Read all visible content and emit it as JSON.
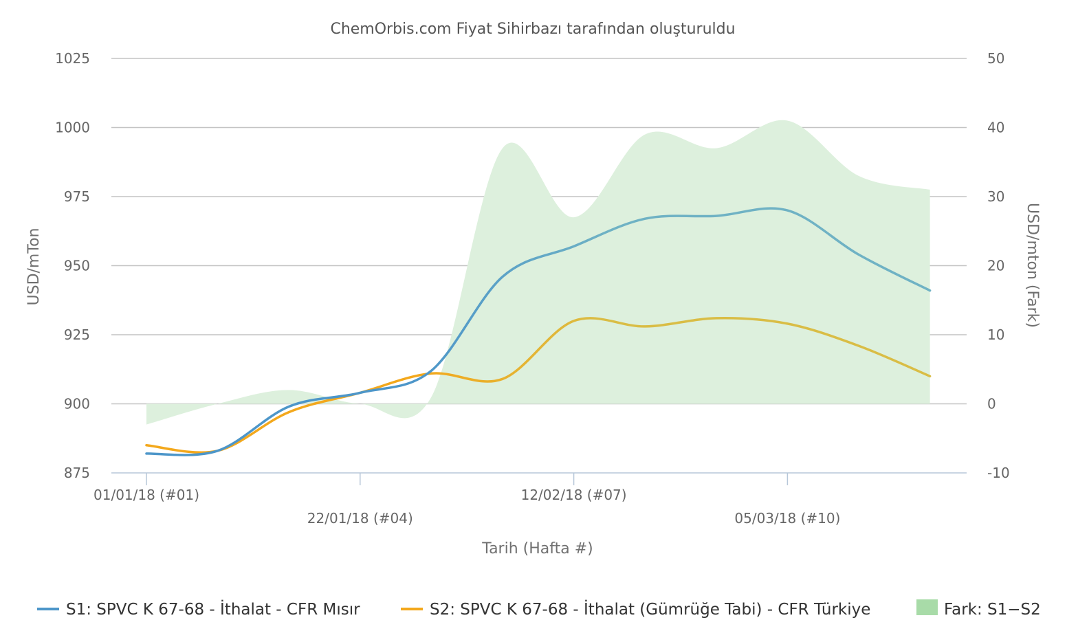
{
  "chart_data": {
    "type": "line",
    "title": "ChemOrbis.com Fiyat Sihirbazı tarafından oluşturuldu",
    "xlabel": "Tarih (Hafta #)",
    "ylabel": "USD/mTon",
    "y2label": "USD/mton (Fark)",
    "x": [
      1,
      2,
      3,
      4,
      5,
      6,
      7,
      8,
      9,
      10,
      11,
      12
    ],
    "x_ticks": [
      {
        "week": 1,
        "label": "01/01/18 (#01)"
      },
      {
        "week": 4,
        "label": "22/01/18 (#04)"
      },
      {
        "week": 7,
        "label": "12/02/18 (#07)"
      },
      {
        "week": 10,
        "label": "05/03/18 (#10)"
      }
    ],
    "ylim": [
      875,
      1025
    ],
    "y_ticks": [
      875,
      900,
      925,
      950,
      975,
      1000,
      1025
    ],
    "y2lim": [
      -10,
      50
    ],
    "y2_ticks": [
      -10,
      0,
      10,
      20,
      30,
      40,
      50
    ],
    "grid": true,
    "legend_position": "bottom",
    "series": [
      {
        "name": "S1: SPVC K 67-68 - İthalat - CFR Mısır",
        "color": "#4d96c9",
        "color_late": "#6fb2c4",
        "axis": "left",
        "values": [
          882,
          883,
          899,
          904,
          912,
          946,
          957,
          967,
          968,
          970,
          954,
          941
        ]
      },
      {
        "name": "S2: SPVC K 67-68 - İthalat (Gümrüğe Tabi) - CFR Türkiye",
        "color": "#f3a81c",
        "color_late": "#d9bd45",
        "axis": "left",
        "values": [
          885,
          883,
          897,
          904,
          911,
          909,
          930,
          928,
          931,
          929,
          921,
          910
        ]
      },
      {
        "name": "Fark: S1−S2",
        "type": "area",
        "color": "#a8dba8",
        "fill": "#ddf0dd",
        "axis": "right",
        "values": [
          -3,
          0,
          2,
          0,
          1,
          37,
          27,
          39,
          37,
          41,
          33,
          31
        ]
      }
    ]
  }
}
